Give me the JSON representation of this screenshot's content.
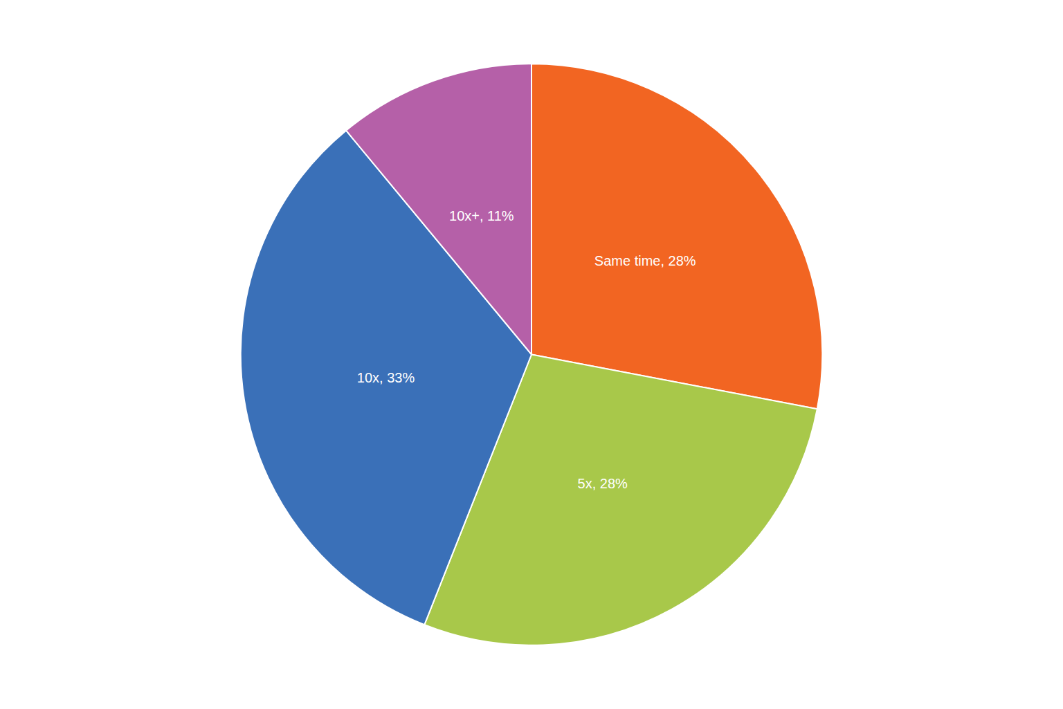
{
  "chart_data": {
    "type": "pie",
    "categories": [
      "Same time",
      "5x",
      "10x",
      "10x+"
    ],
    "values": [
      28,
      28,
      33,
      11
    ],
    "value_labels": [
      "Same time, 28%",
      "5x, 28%",
      "10x, 33%",
      "10x+, 11%"
    ],
    "colors": [
      "#F26522",
      "#A8C84A",
      "#3A70B8",
      "#B560A8"
    ]
  }
}
